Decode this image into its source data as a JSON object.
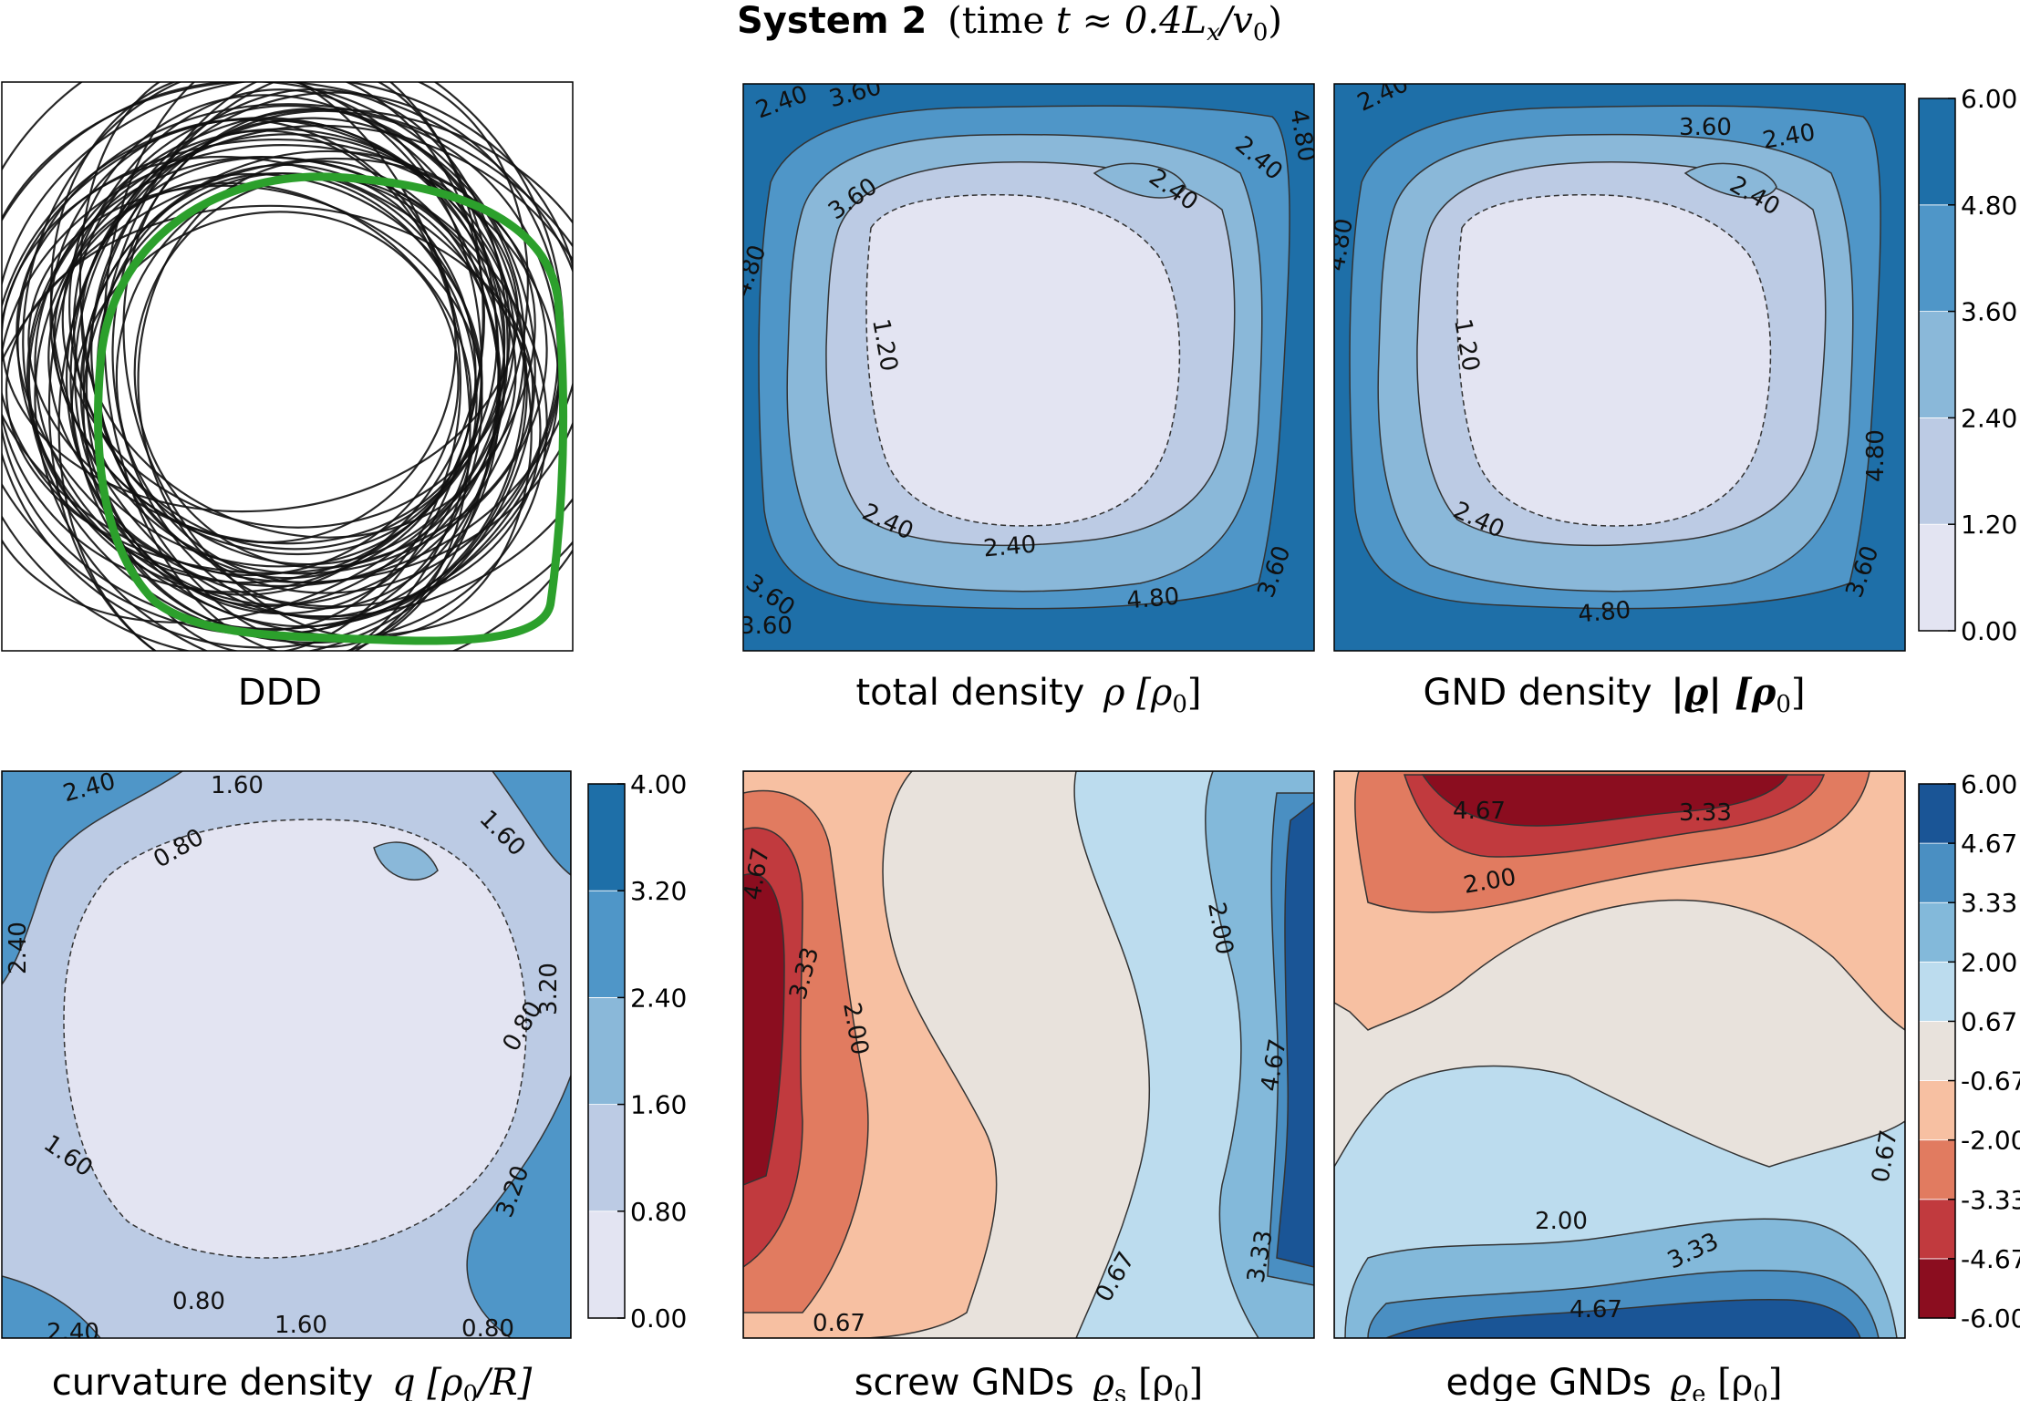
{
  "figure": {
    "title_bold": "System 2",
    "title_rest": "(time ",
    "title_math": "t ≈ 0.4L",
    "title_sub": "x",
    "title_tail": "/v",
    "title_sub2": "0",
    "title_close": ")"
  },
  "chart_data": [
    {
      "id": "ddd",
      "type": "line",
      "title": "DDD",
      "description_values": {
        "loops": "many closed dislocation loops (black) with one highlighted loop (green)"
      },
      "highlight_color": "#2ca02c",
      "line_color": "#111111"
    },
    {
      "id": "total",
      "type": "heatmap",
      "caption": "total density",
      "caption_math": "ρ [ρ",
      "caption_sub": "0",
      "caption_end": "]",
      "levels": [
        0.0,
        1.2,
        2.4,
        3.6,
        4.8,
        6.0
      ],
      "contour_labels": [
        "2.40",
        "3.60",
        "2.40",
        "2.40",
        "3.60",
        "4.80",
        "1.20",
        "2.40",
        "2.40",
        "4.80",
        "3.60",
        "3.60",
        "4.80",
        "3.60"
      ]
    },
    {
      "id": "gnd",
      "type": "heatmap",
      "caption": "GND density",
      "caption_math": "|ϱ| [ρ",
      "caption_sub": "0",
      "caption_end": "]",
      "levels": [
        0.0,
        1.2,
        2.4,
        3.6,
        4.8,
        6.0
      ],
      "contour_labels": [
        "2.40",
        "3.60",
        "2.40",
        "2.40",
        "4.80",
        "1.20",
        "2.40",
        "4.80",
        "3.60",
        "4.80"
      ],
      "colorbar_ticks": [
        "6.00",
        "4.80",
        "3.60",
        "2.40",
        "1.20",
        "0.00"
      ]
    },
    {
      "id": "curv",
      "type": "heatmap",
      "caption": "curvature density",
      "caption_math": "q [ρ",
      "caption_sub": "0",
      "caption_end": "/R]",
      "levels": [
        0.0,
        0.8,
        1.6,
        2.4,
        3.2,
        4.0
      ],
      "contour_labels": [
        "2.40",
        "1.60",
        "0.80",
        "1.60",
        "0.80",
        "1.60",
        "2.40",
        "3.20",
        "0.80",
        "3.20",
        "2.40",
        "0.80",
        "1.60"
      ],
      "colorbar_ticks": [
        "4.00",
        "3.20",
        "2.40",
        "1.60",
        "0.80",
        "0.00"
      ]
    },
    {
      "id": "screw",
      "type": "heatmap",
      "caption": "screw GNDs",
      "caption_math": "ϱ",
      "caption_sub": "s",
      "caption_end": " [ρ",
      "caption_sub2": "0",
      "caption_end2": "]",
      "levels": [
        -6.0,
        -4.67,
        -3.33,
        -2.0,
        -0.67,
        0.67,
        2.0,
        3.33,
        4.67,
        6.0
      ],
      "contour_labels": [
        "4.67",
        "3.33",
        "2.00",
        "2.00",
        "4.67",
        "3.33",
        "0.67",
        "0.67"
      ]
    },
    {
      "id": "edge",
      "type": "heatmap",
      "caption": "edge GNDs",
      "caption_math": "ϱ",
      "caption_sub": "e",
      "caption_end": " [ρ",
      "caption_sub2": "0",
      "caption_end2": "]",
      "levels": [
        -6.0,
        -4.67,
        -3.33,
        -2.0,
        -0.67,
        0.67,
        2.0,
        3.33,
        4.67,
        6.0
      ],
      "contour_labels": [
        "4.67",
        "3.33",
        "2.00",
        "2.00",
        "3.33",
        "4.67",
        "0.67"
      ],
      "colorbar_ticks": [
        "6.00",
        "4.67",
        "3.33",
        "2.00",
        "0.67",
        "-0.67",
        "-2.00",
        "-3.33",
        "-4.67",
        "-6.00"
      ]
    }
  ],
  "colors": {
    "blue_seq": [
      "#e3e4f2",
      "#bccbe4",
      "#8ab8d9",
      "#4f96c8",
      "#1e6fa8"
    ],
    "div": [
      "#8b0d1f",
      "#c13a3e",
      "#e17b60",
      "#f7c0a2",
      "#e8e2dc",
      "#bcdcee",
      "#83b9da",
      "#4a8fc2",
      "#1a5596"
    ]
  }
}
